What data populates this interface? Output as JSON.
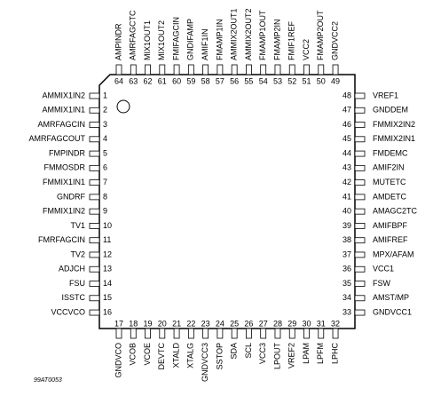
{
  "pins": {
    "left": [
      {
        "number": 1,
        "name": "AMMIX1IN2"
      },
      {
        "number": 2,
        "name": "AMMIX1IN1"
      },
      {
        "number": 3,
        "name": "AMRFAGCIN"
      },
      {
        "number": 4,
        "name": "AMRFAGCOUT"
      },
      {
        "number": 5,
        "name": "FMPINDR"
      },
      {
        "number": 6,
        "name": "FMMOSDR"
      },
      {
        "number": 7,
        "name": "FMMIX1IN1"
      },
      {
        "number": 8,
        "name": "GNDRF"
      },
      {
        "number": 9,
        "name": "FMMIX1IN2"
      },
      {
        "number": 10,
        "name": "TV1"
      },
      {
        "number": 11,
        "name": "FMRFAGCIN"
      },
      {
        "number": 12,
        "name": "TV2"
      },
      {
        "number": 13,
        "name": "ADJCH"
      },
      {
        "number": 14,
        "name": "FSU"
      },
      {
        "number": 15,
        "name": "ISSTC"
      },
      {
        "number": 16,
        "name": "VCCVCO"
      }
    ],
    "bottom": [
      {
        "number": 17,
        "name": "GNDVCO"
      },
      {
        "number": 18,
        "name": "VCOB"
      },
      {
        "number": 19,
        "name": "VCOE"
      },
      {
        "number": 20,
        "name": "DEVTC"
      },
      {
        "number": 21,
        "name": "XTALD"
      },
      {
        "number": 22,
        "name": "XTALG"
      },
      {
        "number": 23,
        "name": "GNDVCC3"
      },
      {
        "number": 24,
        "name": "SSTOP"
      },
      {
        "number": 25,
        "name": "SDA"
      },
      {
        "number": 26,
        "name": "SCL"
      },
      {
        "number": 27,
        "name": "VCC3"
      },
      {
        "number": 28,
        "name": "LPOUT"
      },
      {
        "number": 29,
        "name": "VREF2"
      },
      {
        "number": 30,
        "name": "LPAM"
      },
      {
        "number": 31,
        "name": "LPFM"
      },
      {
        "number": 32,
        "name": "LPHC"
      }
    ],
    "right": [
      {
        "number": 48,
        "name": "VREF1"
      },
      {
        "number": 47,
        "name": "GNDDEM"
      },
      {
        "number": 46,
        "name": "FMMIX2IN2"
      },
      {
        "number": 45,
        "name": "FMMIX2IN1"
      },
      {
        "number": 44,
        "name": "FMDEMC"
      },
      {
        "number": 43,
        "name": "AMIF2IN"
      },
      {
        "number": 42,
        "name": "MUTETC"
      },
      {
        "number": 41,
        "name": "AMDETC"
      },
      {
        "number": 40,
        "name": "AMAGC2TC"
      },
      {
        "number": 39,
        "name": "AMIFBPF"
      },
      {
        "number": 38,
        "name": "AMIFREF"
      },
      {
        "number": 37,
        "name": "MPX/AFAM"
      },
      {
        "number": 36,
        "name": "VCC1"
      },
      {
        "number": 35,
        "name": "FSW"
      },
      {
        "number": 34,
        "name": "AMST/MP"
      },
      {
        "number": 33,
        "name": "GNDVCC1"
      }
    ],
    "top": [
      {
        "number": 64,
        "name": "AMPINDR"
      },
      {
        "number": 63,
        "name": "AMRFAGCTC"
      },
      {
        "number": 62,
        "name": "MIX1OUT1"
      },
      {
        "number": 61,
        "name": "MIX1OUT2"
      },
      {
        "number": 60,
        "name": "FMIFAGCIN"
      },
      {
        "number": 59,
        "name": "GNDIFAMP"
      },
      {
        "number": 58,
        "name": "AMIF1IN"
      },
      {
        "number": 57,
        "name": "FMAMP1IN"
      },
      {
        "number": 56,
        "name": "AMMIX2OUT1"
      },
      {
        "number": 55,
        "name": "AMMIX2OUT2"
      },
      {
        "number": 54,
        "name": "FMAMP1OUT"
      },
      {
        "number": 53,
        "name": "FMAMP2IN"
      },
      {
        "number": 52,
        "name": "FMIF1REF"
      },
      {
        "number": 51,
        "name": "VCC2"
      },
      {
        "number": 50,
        "name": "FMAMP2OUT"
      },
      {
        "number": 49,
        "name": "GNDVCC2"
      }
    ]
  },
  "code": "99AT0053"
}
